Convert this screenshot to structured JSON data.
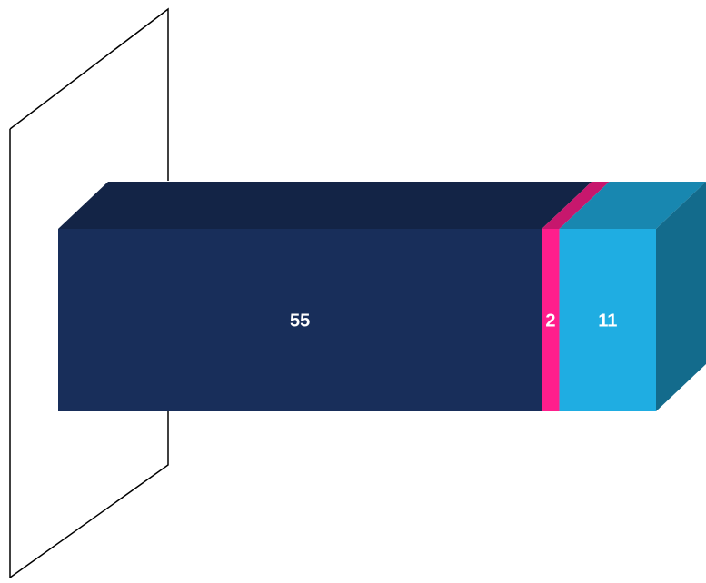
{
  "chart_data": {
    "type": "bar",
    "orientation": "horizontal",
    "stacked": true,
    "style": "3d",
    "title": "",
    "xlabel": "",
    "ylabel": "",
    "categories": [
      ""
    ],
    "series": [
      {
        "values": [
          55
        ],
        "color": "#182e5a",
        "label": "55"
      },
      {
        "values": [
          2
        ],
        "color": "#ff1e8c",
        "label": "2"
      },
      {
        "values": [
          11
        ],
        "color": "#1fade2",
        "label": "11"
      }
    ],
    "axis_visible": false,
    "grid": false,
    "legend": "none"
  }
}
